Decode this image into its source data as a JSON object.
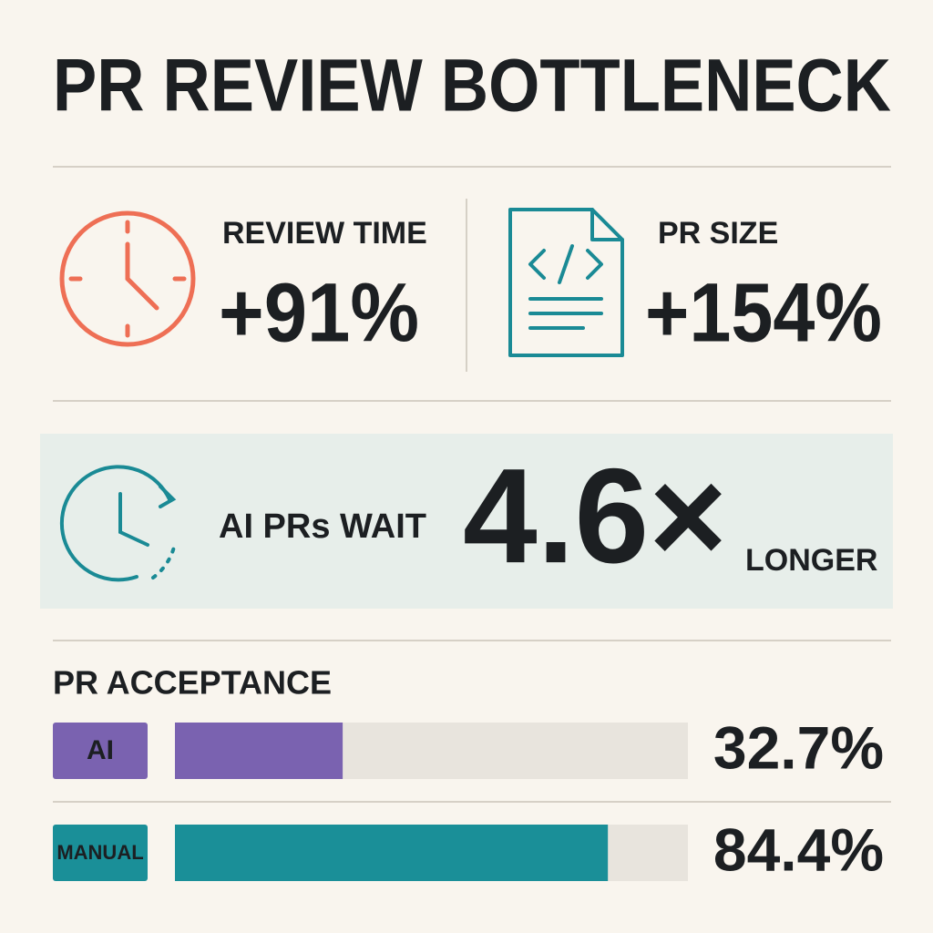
{
  "title": "PR REVIEW BOTTLENECK",
  "stats": [
    {
      "label": "REVIEW TIME",
      "value": "+91%",
      "color": "#ee6f55"
    },
    {
      "label": "PR SIZE",
      "value": "+154%",
      "color": "#1a8a95"
    }
  ],
  "highlight": {
    "prefix": "AI PRs WAIT",
    "value": "4.6×",
    "suffix": "LONGER",
    "color": "#1a8a95"
  },
  "acceptance": {
    "title": "PR ACCEPTANCE",
    "xlim": [
      0,
      100
    ],
    "rows": [
      {
        "label": "AI",
        "value": 32.7,
        "value_label": "32.7%",
        "color": "#7a62b0"
      },
      {
        "label": "MANUAL",
        "value": 84.4,
        "value_label": "84.4%",
        "color": "#1a8f98"
      }
    ]
  }
}
